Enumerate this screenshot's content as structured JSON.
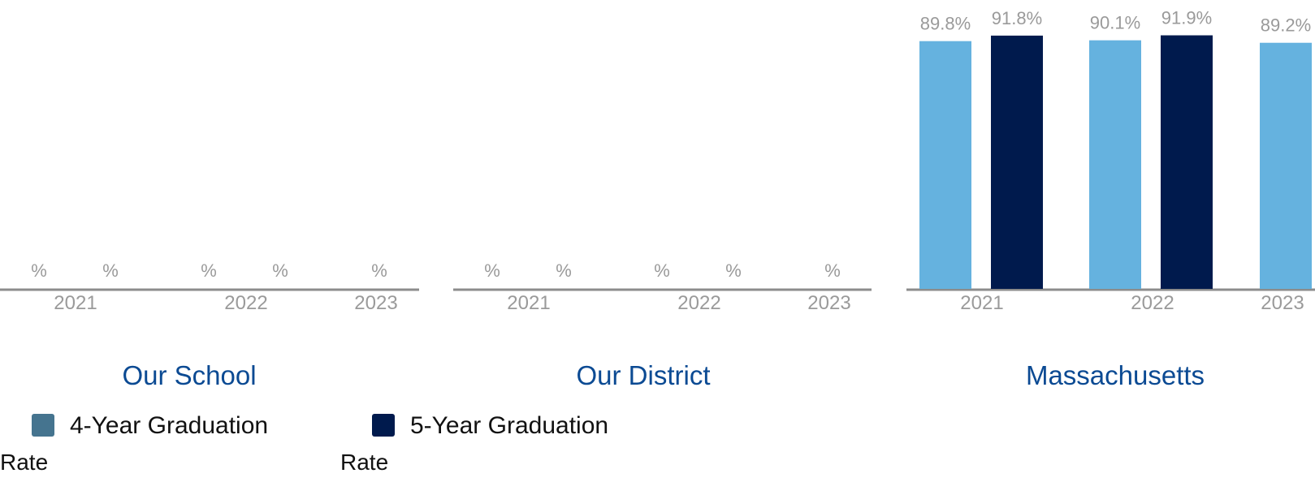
{
  "chart_data": [
    {
      "type": "bar",
      "title": "Our School",
      "categories": [
        "2021",
        "2022",
        "2023"
      ],
      "series": [
        {
          "name": "4-Year Graduation Rate",
          "values": [
            null,
            null,
            null
          ],
          "labels": [
            "%",
            "%",
            "%"
          ]
        },
        {
          "name": "5-Year Graduation Rate",
          "values": [
            null,
            null,
            null
          ],
          "labels": [
            "%",
            "%",
            null
          ]
        }
      ],
      "ylim": [
        0,
        100
      ]
    },
    {
      "type": "bar",
      "title": "Our District",
      "categories": [
        "2021",
        "2022",
        "2023"
      ],
      "series": [
        {
          "name": "4-Year Graduation Rate",
          "values": [
            null,
            null,
            null
          ],
          "labels": [
            "%",
            "%",
            "%"
          ]
        },
        {
          "name": "5-Year Graduation Rate",
          "values": [
            null,
            null,
            null
          ],
          "labels": [
            "%",
            "%",
            null
          ]
        }
      ],
      "ylim": [
        0,
        100
      ]
    },
    {
      "type": "bar",
      "title": "Massachusetts",
      "categories": [
        "2021",
        "2022",
        "2023"
      ],
      "series": [
        {
          "name": "4-Year Graduation Rate",
          "values": [
            89.8,
            90.1,
            89.2
          ],
          "labels": [
            "89.8%",
            "90.1%",
            "89.2%"
          ]
        },
        {
          "name": "5-Year Graduation Rate",
          "values": [
            91.8,
            91.9,
            null
          ],
          "labels": [
            "91.8%",
            "91.9%",
            null
          ]
        }
      ],
      "ylim": [
        0,
        100
      ]
    }
  ],
  "legend": [
    {
      "label_line1": "4-Year Graduation",
      "label_line2": "Rate",
      "color": "#45748f"
    },
    {
      "label_line1": "5-Year Graduation",
      "label_line2": "Rate",
      "color": "#001a4d"
    }
  ],
  "colors": {
    "four_year_bar": "#65b2df",
    "five_year_bar": "#001a4d",
    "axis": "#8c8c8c",
    "title": "#0b4a93",
    "labels": "#9a9a9a"
  }
}
